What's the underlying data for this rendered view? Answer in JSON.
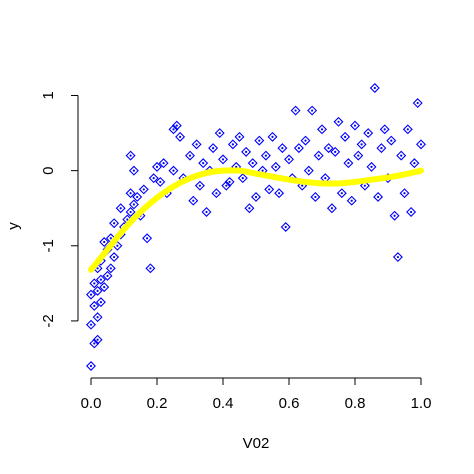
{
  "chart_data": {
    "type": "scatter",
    "title": "",
    "xlabel": "V02",
    "ylabel": "y",
    "xlim": [
      0,
      1
    ],
    "ylim": [
      -2.6,
      1.1
    ],
    "x_ticks": [
      0.0,
      0.2,
      0.4,
      0.6,
      0.8,
      1.0
    ],
    "x_tick_labels": [
      "0.0",
      "0.2",
      "0.4",
      "0.6",
      "0.8",
      "1.0"
    ],
    "y_ticks": [
      -2,
      -1,
      0,
      1
    ],
    "y_tick_labels": [
      "-2",
      "-1",
      "0",
      "1"
    ],
    "grid": false,
    "legend": "none",
    "point_color": "#0000ff",
    "line_color": "#ffff00",
    "series": [
      {
        "kind": "points",
        "marker": "diamond-with-dot",
        "points": [
          [
            0.0,
            -2.6
          ],
          [
            0.01,
            -2.3
          ],
          [
            0.02,
            -2.25
          ],
          [
            0.0,
            -2.05
          ],
          [
            0.02,
            -1.95
          ],
          [
            0.01,
            -1.8
          ],
          [
            0.03,
            -1.75
          ],
          [
            0.0,
            -1.65
          ],
          [
            0.02,
            -1.6
          ],
          [
            0.04,
            -1.55
          ],
          [
            0.01,
            -1.5
          ],
          [
            0.03,
            -1.45
          ],
          [
            0.05,
            -1.4
          ],
          [
            0.02,
            -1.3
          ],
          [
            0.06,
            -1.3
          ],
          [
            0.03,
            -1.2
          ],
          [
            0.07,
            -1.15
          ],
          [
            0.05,
            -1.05
          ],
          [
            0.08,
            -1.0
          ],
          [
            0.04,
            -0.95
          ],
          [
            0.06,
            -0.9
          ],
          [
            0.09,
            -0.85
          ],
          [
            0.1,
            -0.75
          ],
          [
            0.07,
            -0.7
          ],
          [
            0.11,
            -0.65
          ],
          [
            0.12,
            -0.55
          ],
          [
            0.09,
            -0.5
          ],
          [
            0.13,
            -0.45
          ],
          [
            0.14,
            -0.35
          ],
          [
            0.12,
            -0.3
          ],
          [
            0.16,
            -0.25
          ],
          [
            0.15,
            -0.6
          ],
          [
            0.18,
            -1.3
          ],
          [
            0.17,
            -0.9
          ],
          [
            0.19,
            -0.1
          ],
          [
            0.12,
            0.2
          ],
          [
            0.13,
            0.0
          ],
          [
            0.2,
            0.05
          ],
          [
            0.21,
            -0.15
          ],
          [
            0.22,
            0.1
          ],
          [
            0.23,
            -0.3
          ],
          [
            0.25,
            0.55
          ],
          [
            0.26,
            0.6
          ],
          [
            0.27,
            0.45
          ],
          [
            0.25,
            0.0
          ],
          [
            0.28,
            -0.1
          ],
          [
            0.3,
            0.2
          ],
          [
            0.31,
            -0.4
          ],
          [
            0.32,
            0.35
          ],
          [
            0.33,
            -0.2
          ],
          [
            0.34,
            0.1
          ],
          [
            0.35,
            -0.55
          ],
          [
            0.36,
            0.0
          ],
          [
            0.37,
            0.3
          ],
          [
            0.38,
            -0.3
          ],
          [
            0.39,
            0.5
          ],
          [
            0.4,
            0.15
          ],
          [
            0.41,
            -0.2
          ],
          [
            0.42,
            -0.15
          ],
          [
            0.43,
            0.35
          ],
          [
            0.44,
            0.05
          ],
          [
            0.45,
            0.45
          ],
          [
            0.46,
            -0.1
          ],
          [
            0.47,
            0.25
          ],
          [
            0.48,
            -0.5
          ],
          [
            0.49,
            0.1
          ],
          [
            0.5,
            -0.35
          ],
          [
            0.51,
            0.4
          ],
          [
            0.52,
            0.0
          ],
          [
            0.53,
            0.2
          ],
          [
            0.54,
            -0.25
          ],
          [
            0.55,
            0.45
          ],
          [
            0.56,
            0.05
          ],
          [
            0.57,
            -0.3
          ],
          [
            0.58,
            0.3
          ],
          [
            0.59,
            -0.75
          ],
          [
            0.6,
            0.15
          ],
          [
            0.61,
            -0.1
          ],
          [
            0.62,
            0.8
          ],
          [
            0.63,
            0.3
          ],
          [
            0.64,
            -0.2
          ],
          [
            0.65,
            0.4
          ],
          [
            0.66,
            0.0
          ],
          [
            0.67,
            0.8
          ],
          [
            0.68,
            -0.35
          ],
          [
            0.69,
            0.2
          ],
          [
            0.7,
            0.55
          ],
          [
            0.71,
            -0.1
          ],
          [
            0.72,
            0.3
          ],
          [
            0.73,
            -0.5
          ],
          [
            0.74,
            0.25
          ],
          [
            0.75,
            0.65
          ],
          [
            0.76,
            -0.3
          ],
          [
            0.77,
            0.45
          ],
          [
            0.78,
            0.1
          ],
          [
            0.79,
            -0.4
          ],
          [
            0.8,
            0.6
          ],
          [
            0.81,
            0.2
          ],
          [
            0.82,
            0.35
          ],
          [
            0.83,
            -0.2
          ],
          [
            0.84,
            0.5
          ],
          [
            0.85,
            0.05
          ],
          [
            0.86,
            1.1
          ],
          [
            0.87,
            -0.35
          ],
          [
            0.88,
            0.3
          ],
          [
            0.89,
            0.55
          ],
          [
            0.9,
            -0.1
          ],
          [
            0.91,
            0.4
          ],
          [
            0.92,
            -0.6
          ],
          [
            0.93,
            -1.15
          ],
          [
            0.94,
            0.2
          ],
          [
            0.95,
            -0.3
          ],
          [
            0.96,
            0.55
          ],
          [
            0.97,
            -0.55
          ],
          [
            0.98,
            0.1
          ],
          [
            0.99,
            0.9
          ],
          [
            1.0,
            0.35
          ]
        ]
      },
      {
        "kind": "line",
        "name": "",
        "x": [
          0.0,
          0.05,
          0.1,
          0.15,
          0.2,
          0.25,
          0.3,
          0.35,
          0.4,
          0.45,
          0.5,
          0.55,
          0.6,
          0.65,
          0.7,
          0.75,
          0.8,
          0.85,
          0.9,
          0.95,
          1.0
        ],
        "y": [
          -1.32,
          -1.05,
          -0.78,
          -0.55,
          -0.36,
          -0.21,
          -0.1,
          -0.03,
          0.0,
          0.0,
          -0.04,
          -0.08,
          -0.12,
          -0.15,
          -0.17,
          -0.17,
          -0.15,
          -0.12,
          -0.09,
          -0.05,
          0.0
        ]
      }
    ]
  }
}
